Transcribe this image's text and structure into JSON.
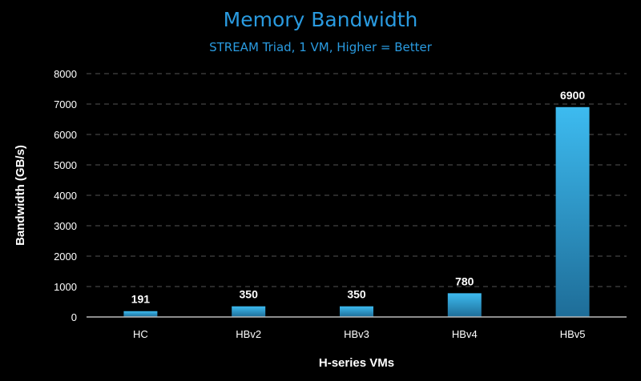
{
  "chart_data": {
    "type": "bar",
    "title": "Memory Bandwidth",
    "subtitle": "STREAM Triad, 1 VM, Higher = Better",
    "xlabel": "H-series VMs",
    "ylabel": "Bandwidth (GB/s)",
    "categories": [
      "HC",
      "HBv2",
      "HBv3",
      "HBv4",
      "HBv5"
    ],
    "values": [
      191,
      350,
      350,
      780,
      6900
    ],
    "data_labels": [
      "191",
      "350",
      "350",
      "780",
      "6900"
    ],
    "ylim": [
      0,
      8000
    ],
    "yticks": [
      0,
      1000,
      2000,
      3000,
      4000,
      5000,
      6000,
      7000,
      8000
    ],
    "grid": true,
    "colors": {
      "bar_top": "#3dbbf0",
      "bar_bottom": "#1e6d98",
      "title": "#2a9be0",
      "background": "#000000"
    }
  }
}
